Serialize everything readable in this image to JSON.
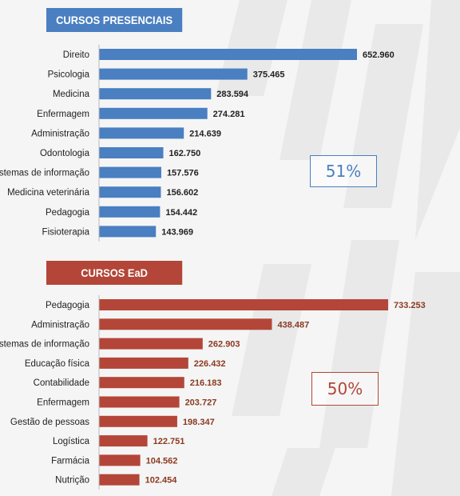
{
  "colors": {
    "presencial": "#4a7fc1",
    "ead": "#b34638"
  },
  "chart_data": [
    {
      "type": "bar",
      "orientation": "horizontal",
      "title": "CURSOS PRESENCIAIS",
      "color": "#4a7fc1",
      "categories": [
        "Direito",
        "Psicologia",
        "Medicina",
        "Enfermagem",
        "Administração",
        "Odontologia",
        "Sistemas de informação",
        "Medicina veterinária",
        "Pedagogia",
        "Fisioterapia"
      ],
      "values": [
        652960,
        375465,
        283594,
        274281,
        214639,
        162750,
        157576,
        156602,
        154442,
        143969
      ],
      "value_labels": [
        "652.960",
        "375.465",
        "283.594",
        "274.281",
        "214.639",
        "162.750",
        "157.576",
        "156.602",
        "154.442",
        "143.969"
      ],
      "annotation": "51%"
    },
    {
      "type": "bar",
      "orientation": "horizontal",
      "title": "CURSOS EaD",
      "color": "#b34638",
      "categories": [
        "Pedagogia",
        "Administração",
        "Sistemas de informação",
        "Educação física",
        "Contabilidade",
        "Enfermagem",
        "Gestão de pessoas",
        "Logística",
        "Farmácia",
        "Nutrição"
      ],
      "values": [
        733253,
        438487,
        262903,
        226432,
        216183,
        203727,
        198347,
        122751,
        104562,
        102454
      ],
      "value_labels": [
        "733.253",
        "438.487",
        "262.903",
        "226.432",
        "216.183",
        "203.727",
        "198.347",
        "122.751",
        "104.562",
        "102.454"
      ],
      "annotation": "50%"
    }
  ]
}
